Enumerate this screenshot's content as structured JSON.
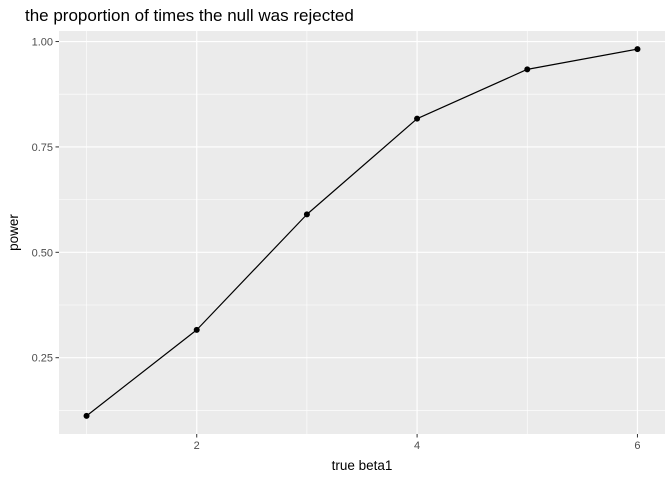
{
  "chart_data": {
    "type": "line",
    "title": "the proportion of times the null was rejected",
    "xlabel": "true beta1",
    "ylabel": "power",
    "x": [
      1,
      2,
      3,
      4,
      5,
      6
    ],
    "series": [
      {
        "values": [
          0.112,
          0.316,
          0.59,
          0.817,
          0.934,
          0.982
        ]
      }
    ],
    "xlim": [
      0.75,
      6.25
    ],
    "ylim": [
      0.069,
      1.025
    ],
    "x_ticks": [
      2,
      4,
      6
    ],
    "x_tick_labels": [
      "2",
      "4",
      "6"
    ],
    "x_minor_ticks": [
      1,
      3,
      5
    ],
    "y_ticks": [
      0.25,
      0.5,
      0.75,
      1.0
    ],
    "y_tick_labels": [
      "0.25",
      "0.50",
      "0.75",
      "1.00"
    ],
    "y_minor_ticks": [
      0.125,
      0.375,
      0.625,
      0.875
    ],
    "grid": true,
    "markers": true,
    "colors": {
      "panel_background": "#ebebeb",
      "grid": "#ffffff",
      "line": "#000000",
      "point": "#000000",
      "tick_label": "#4d4d4d",
      "tick_mark": "#333333"
    }
  }
}
